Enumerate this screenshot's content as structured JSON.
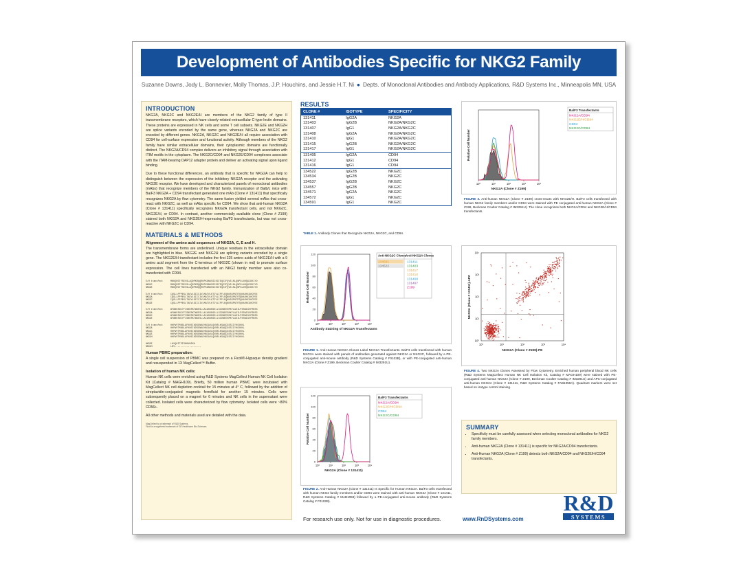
{
  "poster": {
    "title": "Development of Antibodies Specific for NKG2 Family Members",
    "authors": "Suzanne Downs, Jody L. Bonnevier, Molly Thomas, J.P. Houchins, and Jessie H.T. Ni",
    "affiliation": "Depts. of Monoclonal Antibodies and Antibody Applications, R&D Systems Inc., Minneapolis MN, USA"
  },
  "introduction": {
    "heading": "INTRODUCTION",
    "p1": "NKG2A, NKG2C and NKG2E/H are members of the NKG2 family of type II transmembrane receptors, which have closely-related extracellular C-type lectin domains. These proteins are expressed in NK cells and some T cell subsets. NKG2E and NKG2H are splice variants encoded by the same gene, whereas NKG2A and NKG2C are encoded by different genes. NKG2A, NKG2C and NKG2E/H all require association with CD94 for cell-surface expression and functional activity. Although members of the NKG2 family have similar extracellular domains, their cytoplasmic domains are functionally distinct. The NKG2A/CD94 complex delivers an inhibitory signal through association with ITIM motifs in the cytoplasm. The NKG2C/CD94 and NKG2E/CD94 complexes associate with the ITAM-bearing DAP12 adapter protein and deliver an activating signal upon ligand binding.",
    "p2": "Due to these functional differences, an antibody that is specific for NKG2A can help to distinguish between the expression of the inhibitory NKG2A receptor and the activating NKG2E receptor. We have developed and characterized panels of monoclonal antibodies (mAbs) that recognize members of the NKG2 family. Immunization of Balb/c mice with Ba/F3 NKG2A + CD94 transfectant generated one mAb (Clone # 131411) that specifically recognizes NKG2A by flow cytometry. The same fusion yielded several mAbs that cross-react with NKG2C, as well as mAbs specific for CD94. We show that anti-human NKG2A (Clone # 131411) specifically recognizes NKG2A transfectant cells, and not NKG2C, NKG2E/H, or CD94. In contrast, another commercially available clone (Clone # Z199) stained both NKG2A and NKG2E/H-expressing Ba/F3 transfectants, but was not cross-reactive with NKG2C or CD94."
  },
  "methods": {
    "heading": "MATERIALS & METHODS",
    "align_title": "Alignment of the amino acid sequences of NKG2A, C, E and H.",
    "align_text": "The transmembrane forms are underlined. Unique residues in the extracellular domain are highlighted in blue. NKG2E and NKG2H are splicing variants encoded by a single gene. The NKG2E/H transfectant includes the first 225 amino acids of NKG2E/H with a 9 amino acid segment from the C-terminus of NKG2C (shown in red) to promote surface expression. The cell lines transfected with an NKG2 family member were also co-transfected with CD94.",
    "seq_rows": [
      {
        "name": "E/H transfect",
        "seq": "MNKQRGTFSEVSLAQDPKRQQRKPKGNKSSISGTEQEIFQVELNLQNPSLNHQGIDKIYD"
      },
      {
        "name": "NKG2C",
        "seq": "MNKQRGTFSEVSLAQDPKRQQRKPKGNKSSISGTEQEIFQVELNLQNPSLNHQGIDKIYD"
      },
      {
        "name": "NKG2E",
        "seq": "MNKQRGTFSEVSLAQDPKRQQRKPKGNKSSISGTEQEIFQVELNLQNPSLNHQGIDKIYD"
      },
      {
        "name": "",
        "seq": ""
      },
      {
        "name": "E/H transfect",
        "seq": "CQGLLPPPEKLTAEVLGIICIVLMATVLKTIVLIPFLEQNNSSPNTRTQKARHCGHCPEE"
      },
      {
        "name": "NKG2A",
        "seq": "CQGLLPPPEKLTAEVLGIICIVLMATVLKTIVLIPFLEQNNSSPNTRTQKARHCGHCPEE"
      },
      {
        "name": "NKG2C",
        "seq": "CQGLLPPPEKLTAEVLGIICIVLMATVLKTIVLIPFLEQNNSSPNTRTQKARHCGHCPEE"
      },
      {
        "name": "NKG2E",
        "seq": "CQGLLPPPEKLTAEVLGIICIVLMATVLKTIVLIPFLEQNNSSPNTRTQKARHCGHCPEE"
      },
      {
        "name": "",
        "seq": ""
      },
      {
        "name": "E/H transfect",
        "seq": "WFWNESNCYFISNERKTWKESLLACASKNSSLLSIDNEEEMKFLASILPSSWIGVFRNSS"
      },
      {
        "name": "NKG2A",
        "seq": "WFWNESNCYFISNERKTWKESLLACASKNSSLLSIDNEEEMKFLASILPSSWIGVFRNSS"
      },
      {
        "name": "NKG2C",
        "seq": "WFWNESNCYFISNERKTWKESLLACASKNSSLLSIDNEEEMKFLASILPSSWIGVFRNSS"
      },
      {
        "name": "NKG2E",
        "seq": "WFWNESNCYFISNERKTWKESLLACASKNSSLLSIDNEEEMKFLASILPSSWIGVFRNSS"
      },
      {
        "name": "",
        "seq": ""
      },
      {
        "name": "E/H transfect",
        "seq": "HHPWVTMNGLAFKHEIKDSDNAEHNCAVLQVNRLKSAQCGSSIIYHCKHKL"
      },
      {
        "name": "NKG2A",
        "seq": "HHPWVTMNGLAFKHEIKDSDNAEHNCAVLQVNRLKSAQCGSSIIYHCKHKL"
      },
      {
        "name": "NKG2C",
        "seq": "HHPWVTMNGLAFKHEIKDSDNAEHNCAVLQVNRLKSAQCGSSIIYHCKHKL"
      },
      {
        "name": "NKG2E",
        "seq": "HHPWVTMNGLAFKHEIKDSDNAEHNCAVLQVNRLKSAQCGSSIIYHCKHKL"
      },
      {
        "name": "NKG2H",
        "seq": "HHPWVTMNGLAFKHEIKDSDNAEHNCAVLQVNRLKSAQCGSSIIYHCKHKL"
      },
      {
        "name": "",
        "seq": ""
      },
      {
        "name": "NKG2E",
        "seq": "LNVQKITPISNKHKEKA"
      },
      {
        "name": "NKG2H",
        "seq": "LNV------------------"
      }
    ],
    "pbmc_title": "Human PBMC preparation:",
    "pbmc_text": "A single cell suspension of PBMC was prepared on a Ficoll®-Hypaque density gradient and resuspended in 1X MagCellect™ Buffer.",
    "nk_title": "Isolation of human NK cells:",
    "nk_text": "Human NK cells were enriched using R&D Systems MagCellect Human NK Cell Isolation Kit (Catalog # MAGH109). Briefly, 50 million human PBMC were incubated with MagCellect NK cell depletion cocktail for 15 minutes at 4° C, followed by the addition of streptavidin-conjugated magnetic ferrofluid for another 15 minutes. Cells were subsequently placed on a magnet for 6 minutes and NK cells in the supernatant were collected. Isolated cells were characterized by flow cytometry. Isolated cells were ~80% CD56+.",
    "other_text": "All other methods and materials used are detailed with the data.",
    "tm1": "MagCellect is a trademark of R&D Systems.",
    "tm2": "Ficoll is a registered trademark of GE Healthcare Bio-Sciences."
  },
  "results": {
    "heading": "RESULTS",
    "table_headers": [
      "CLONE #",
      "ISOTYPE",
      "SPECIFICITY"
    ],
    "table_rows": [
      [
        "131411",
        "IgG2A",
        "NKG2A"
      ],
      [
        "131403",
        "IgG2B",
        "NKG2A/NKG2C"
      ],
      [
        "131407",
        "IgG1",
        "NKG2A/NKG2C"
      ],
      [
        "131408",
        "IgG2A",
        "NKG2A/NKG2C"
      ],
      [
        "131410",
        "IgG1",
        "NKG2A/NKG2C"
      ],
      [
        "131415",
        "IgG2B",
        "NKG2A/NKG2C"
      ],
      [
        "131417",
        "IgG1",
        "NKG2A/NKG2C"
      ],
      [
        "131405",
        "IgG2A",
        "CD94"
      ],
      [
        "131412",
        "IgG1",
        "CD94"
      ],
      [
        "131416",
        "IgG1",
        "CD94"
      ],
      [
        "134522",
        "IgG2B",
        "NKG2C"
      ],
      [
        "134534",
        "IgG2B",
        "NKG2C"
      ],
      [
        "134537",
        "IgG2B",
        "NKG2C"
      ],
      [
        "134557",
        "IgG2B",
        "NKG2C"
      ],
      [
        "134571",
        "IgG2A",
        "NKG2C"
      ],
      [
        "134572",
        "IgG1",
        "NKG2C"
      ],
      [
        "134591",
        "IgG1",
        "NKG2C"
      ]
    ],
    "table_caption_label": "TABLE 1.",
    "table_caption": "Antibody Clones that Recognize NKG2A, NKG2C, and CD94."
  },
  "fig1": {
    "legend_col1_title": "Anti-NKG2C Clones",
    "legend_col2_title": "Anti-NKG2A Clones",
    "col1": [
      {
        "label": "134591",
        "color": "#e8a33c"
      },
      {
        "label": "134522",
        "color": "#777777"
      }
    ],
    "col2": [
      {
        "label": "131411",
        "color": "#2a9fd6"
      },
      {
        "label": "131403",
        "color": "#2b9a3c"
      },
      {
        "label": "131417",
        "color": "#e8a33c"
      },
      {
        "label": "131410",
        "color": "#e8a33c"
      },
      {
        "label": "131408",
        "color": "#2a9fd6"
      },
      {
        "label": "131407",
        "color": "#8a4fb0"
      },
      {
        "label": "Z199",
        "color": "#e2127a"
      }
    ],
    "ylabel": "Relative Cell Number",
    "xlabel": "Antibody Staining of NKG2A Transfectants",
    "yticks": [
      "120",
      "100",
      "80",
      "60",
      "40",
      "20",
      "0"
    ],
    "xticks": [
      "10⁰",
      "10¹",
      "10²",
      "10³",
      "10⁴"
    ],
    "caption_label": "FIGURE 1.",
    "caption": "Anti-Human NKG2A Clones Label NKG2A Transfectants. Ba/F3 cells transfected with human NKG2A were stained with panels of antibodies generated against NKG2A or NKG2C, followed by a PE-conjugated anti-mouse antibody (R&D Systems Catalog # F0102B), or with PE-conjugated anti-human NKG2A (Clone # Z199, Beckman Coulter Catalog # IM3291U)."
  },
  "fig2": {
    "legend_title": "Ba/F3 Transfectants",
    "legend": [
      {
        "label": "NKG2A/CD94",
        "color": "#e2127a"
      },
      {
        "label": "NKG2E/H/CD94",
        "color": "#e8a33c"
      },
      {
        "label": "CD94",
        "color": "#2a9fd6"
      },
      {
        "label": "NKG2C/CD94",
        "color": "#2b9a3c"
      }
    ],
    "ylabel": "Relative Cell Number",
    "xlabel": "NKG2A (Clone # 131411)",
    "yticks": [
      "120",
      "100",
      "80",
      "60",
      "40",
      "20",
      "0"
    ],
    "xticks": [
      "10⁰",
      "10¹",
      "10²",
      "10³",
      "10⁴"
    ],
    "caption_label": "FIGURE 2.",
    "caption": "Anti-Human NKG2A (Clone # 131411) Is Specific for Human NKG2A. Ba/F3 cells transfected with human NKG2 family members and/or CD94 were stained with anti-human NKG2A (Clone # 131411, R&D Systems Catalog # MAB1059) followed by a PE-conjugated anti-mouse antibody (R&D Systems Catalog # F0102B)."
  },
  "fig3": {
    "legend_title": "Ba/F3 Transfectants",
    "legend": [
      {
        "label": "NKG2A/CD94",
        "color": "#e2127a"
      },
      {
        "label": "NKG2E/H/CD94",
        "color": "#e8a33c"
      },
      {
        "label": "CD94",
        "color": "#2a9fd6"
      },
      {
        "label": "NKG2C/CD94",
        "color": "#2b9a3c"
      }
    ],
    "ylabel": "Relative Cell Number",
    "xlabel": "NKG2A (Clone # Z199)",
    "xticks": [
      "10⁰",
      "10¹",
      "10²",
      "10³",
      "10⁴"
    ],
    "caption_label": "FIGURE 3.",
    "caption": "Anti-human NKG2A (Clone # Z199) cross-reacts with NKG2E/H. Ba/F3 cells transfected with human NKG2 family members and/or CD94 were stained with PE conjugated anti-human NKG2A (Clone # Z199, Beckman Coulter Catalog # IM3291U). The clone recognizes both NKG2A/CD94 and NKG2E/H/CD94 transfectants."
  },
  "fig4": {
    "ylabel": "NKG2A (Clone # 131411)-APC",
    "xlabel": "NKG2A (Clone # Z199)-PE",
    "ticks": [
      "10⁰",
      "10¹",
      "10²",
      "10³",
      "10⁴"
    ],
    "caption_label": "FIGURE 4.",
    "caption": "Two NKG2A Clones Assessed by Flow Cytometry. Enriched human peripheral blood NK cells (R&D Systems MagCellect Human NK Cell Isolation Kit, Catalog # MAGH109) were stained with PE-conjugated anti-human NKG2A (Clone # Z199, Beckman Coulter Catalog # IM3291U) and APC-conjugated anti-human NKG2A (Clone # 131411, R&D Systems Catalog # FAB1059A). Quadrant markers were set based on isotype control staining."
  },
  "summary": {
    "heading": "SUMMARY",
    "items": [
      "Specificity must be carefully assessed when selecting monoclonal antibodies for NKG2 family members.",
      "Anti-human NKG2A (Clone # 131411) is specific for NKG2A/CD94 transfectants.",
      "Anti-Human NKG2A (Clone # Z199) detects both NKG2A/CD94 and NKG2E/H/CD94 transfectants."
    ]
  },
  "footer": {
    "disclaimer": "For research use only. Not for use in diagnostic procedures.",
    "url": "www.RnDSystems.com",
    "logo_text": "R&D",
    "logo_sub": "SYSTEMS",
    "logo_color": "#16509a"
  }
}
